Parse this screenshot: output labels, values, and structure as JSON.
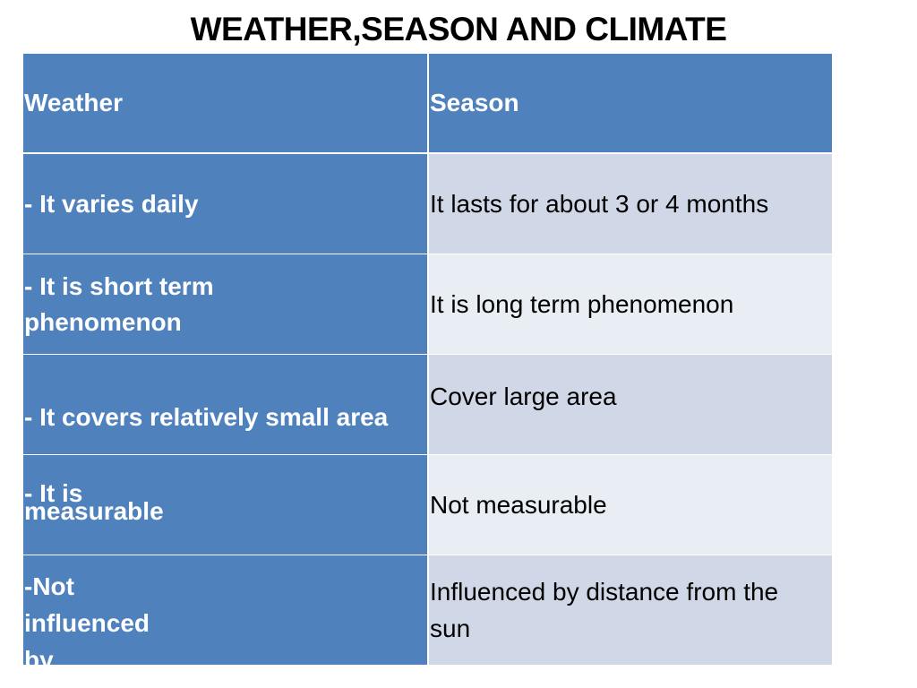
{
  "title": "WEATHER,SEASON AND CLIMATE",
  "colors": {
    "header": "#4F81BD",
    "left_column": "#4F81BD",
    "band_dark": "#D0D8E8",
    "band_light": "#E9EDF4"
  },
  "table": {
    "headers": [
      "Weather",
      "Season"
    ],
    "rows": [
      {
        "weather": "- It varies daily",
        "season": "It lasts for about 3 or 4 months"
      },
      {
        "weather": "- It is short term phenomenon",
        "season": "It is long term phenomenon"
      },
      {
        "weather": "- It covers relatively small area",
        "season": "Cover large area"
      },
      {
        "weather": "- It is measurable",
        "season": "Not measurable"
      },
      {
        "weather": "-Not influenced by distance from the sun",
        "season": "Influenced by distance from the sun"
      }
    ]
  }
}
